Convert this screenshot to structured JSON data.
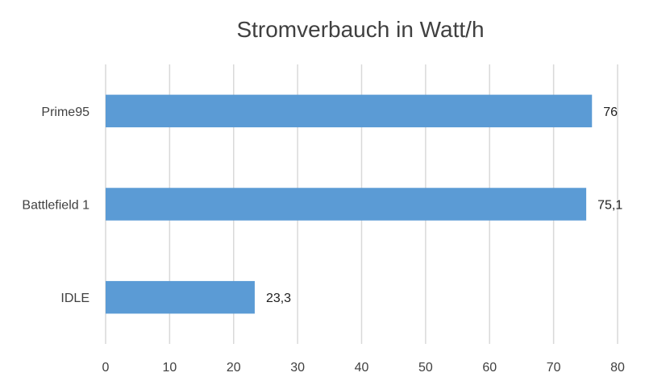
{
  "chart_data": {
    "type": "bar",
    "orientation": "horizontal",
    "title": "Stromverbauch in Watt/h",
    "xlabel": "",
    "ylabel": "",
    "categories": [
      "Prime95",
      "Battlefield 1",
      "IDLE"
    ],
    "values": [
      76,
      75.1,
      23.3
    ],
    "value_labels": [
      "76",
      "75,1",
      "23,3"
    ],
    "xlim": [
      0,
      80
    ],
    "x_ticks": [
      "0",
      "10",
      "20",
      "30",
      "40",
      "50",
      "60",
      "70",
      "80"
    ],
    "grid": true,
    "legend": "none",
    "bar_color": "#5b9bd5",
    "grid_color": "#d9d9d9"
  }
}
